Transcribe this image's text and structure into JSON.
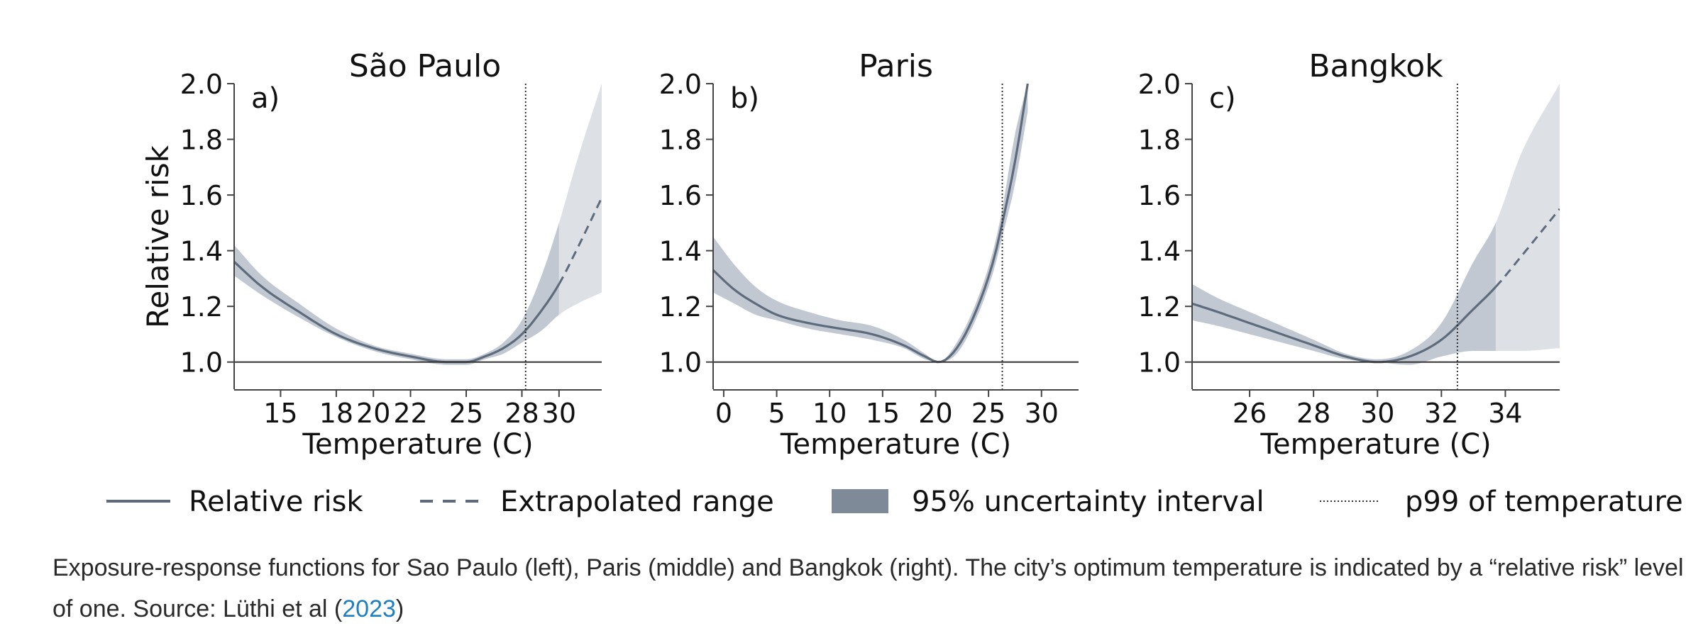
{
  "chart_data": [
    {
      "type": "line",
      "panel_label": "a)",
      "title": "São Paulo",
      "xlabel": "Temperature (C)",
      "ylabel": "Relative risk",
      "xlim": [
        12.5,
        32.3
      ],
      "ylim": [
        0.9,
        2.0
      ],
      "xticks": [
        15,
        18,
        20,
        22,
        25,
        28,
        30
      ],
      "yticks": [
        1.0,
        1.2,
        1.4,
        1.6,
        1.8,
        2.0
      ],
      "p99": 28.2,
      "observed_max": 30,
      "series": {
        "x": [
          12.5,
          14,
          16,
          18,
          20,
          22,
          24,
          25,
          26,
          27,
          28,
          29,
          30,
          31,
          32.3
        ],
        "y": [
          1.36,
          1.27,
          1.18,
          1.1,
          1.05,
          1.02,
          1.0,
          1.0,
          1.02,
          1.05,
          1.1,
          1.18,
          1.28,
          1.41,
          1.59
        ],
        "lower": [
          1.31,
          1.24,
          1.16,
          1.09,
          1.04,
          1.01,
          0.99,
          0.99,
          1.01,
          1.03,
          1.07,
          1.11,
          1.17,
          1.21,
          1.25
        ],
        "upper": [
          1.42,
          1.31,
          1.21,
          1.12,
          1.06,
          1.03,
          1.01,
          1.01,
          1.03,
          1.07,
          1.15,
          1.3,
          1.5,
          1.73,
          2.0
        ]
      }
    },
    {
      "type": "line",
      "panel_label": "b)",
      "title": "Paris",
      "xlabel": "Temperature (C)",
      "ylabel": "",
      "xlim": [
        -1,
        33.5
      ],
      "ylim": [
        0.9,
        2.0
      ],
      "xticks": [
        0,
        5,
        10,
        15,
        20,
        25,
        30
      ],
      "yticks": [
        1.0,
        1.2,
        1.4,
        1.6,
        1.8,
        2.0
      ],
      "p99": 26.3,
      "observed_max": null,
      "series": {
        "x": [
          -1,
          1,
          3,
          5,
          8,
          11,
          14,
          17,
          19,
          20.3,
          22,
          24,
          25.5,
          26.3,
          27.5,
          28.7
        ],
        "y": [
          1.33,
          1.26,
          1.21,
          1.17,
          1.14,
          1.12,
          1.1,
          1.06,
          1.02,
          1.0,
          1.05,
          1.2,
          1.37,
          1.5,
          1.72,
          2.0
        ],
        "lower": [
          1.25,
          1.21,
          1.17,
          1.15,
          1.12,
          1.1,
          1.08,
          1.05,
          1.01,
          1.0,
          1.03,
          1.17,
          1.33,
          1.45,
          1.64,
          1.9
        ],
        "upper": [
          1.45,
          1.35,
          1.27,
          1.22,
          1.18,
          1.15,
          1.13,
          1.08,
          1.03,
          1.0,
          1.07,
          1.23,
          1.41,
          1.55,
          1.82,
          2.0
        ]
      }
    },
    {
      "type": "line",
      "panel_label": "c)",
      "title": "Bangkok",
      "xlabel": "Temperature (C)",
      "ylabel": "",
      "xlim": [
        24.2,
        35.7
      ],
      "ylim": [
        0.9,
        2.0
      ],
      "xticks": [
        26,
        28,
        30,
        32,
        34
      ],
      "yticks": [
        1.0,
        1.2,
        1.4,
        1.6,
        1.8,
        2.0
      ],
      "p99": 32.5,
      "observed_max": 33.7,
      "series": {
        "x": [
          24.2,
          25,
          26,
          27,
          28,
          29,
          30,
          31,
          32,
          33,
          33.7,
          34.5,
          35.7
        ],
        "y": [
          1.21,
          1.18,
          1.14,
          1.1,
          1.06,
          1.02,
          1.0,
          1.02,
          1.08,
          1.19,
          1.27,
          1.38,
          1.55
        ],
        "lower": [
          1.15,
          1.13,
          1.1,
          1.07,
          1.04,
          1.01,
          1.0,
          0.99,
          1.02,
          1.04,
          1.04,
          1.04,
          1.05
        ],
        "upper": [
          1.28,
          1.23,
          1.18,
          1.13,
          1.08,
          1.03,
          1.01,
          1.04,
          1.14,
          1.36,
          1.5,
          1.75,
          2.0
        ]
      }
    }
  ],
  "legend": [
    {
      "key": "relative_risk",
      "label": "Relative risk"
    },
    {
      "key": "extrapolated",
      "label": "Extrapolated range"
    },
    {
      "key": "uncertainty",
      "label": "95% uncertainty interval"
    },
    {
      "key": "p99",
      "label": "p99 of temperature"
    }
  ],
  "colors": {
    "line": "#5e6b7c",
    "band_observed": "#8e9aab",
    "band_extrapolated": "#dde1e6",
    "axis": "#444444",
    "caption_link": "#1e7fc2"
  },
  "caption": {
    "text_before_link": "Exposure-response functions for Sao Paulo (left), Paris (middle) and Bangkok (right). The city’s optimum temperature is indicated by a “relative risk” level of one. Source: Lüthi et al (",
    "link_text": "2023",
    "text_after_link": ")"
  }
}
